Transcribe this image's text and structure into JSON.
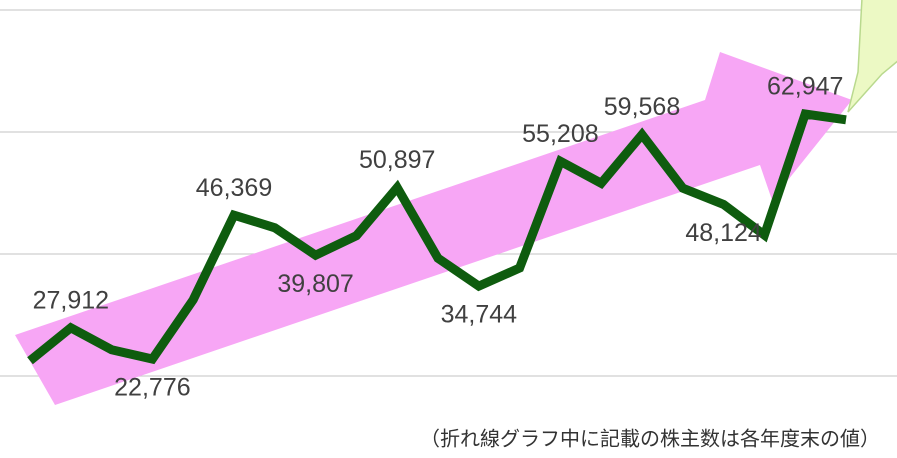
{
  "chart_data": {
    "type": "line",
    "note": "（折れ線グラフ中に記載の株主数は各年度末の値）",
    "categories": [
      null,
      null,
      null,
      null,
      null,
      null,
      null,
      null,
      null,
      null,
      null,
      null,
      null,
      null,
      null,
      null,
      null,
      null,
      null,
      null,
      null
    ],
    "series": [
      {
        "color": "#0e5c0e",
        "values": [
          22500,
          27912,
          24300,
          22776,
          32500,
          46369,
          44300,
          39807,
          43000,
          50897,
          39300,
          34744,
          37700,
          55208,
          51600,
          59568,
          50800,
          48124,
          43100,
          62947,
          62000
        ],
        "value_labels": [
          null,
          "27,912",
          null,
          "22,776",
          null,
          "46,369",
          null,
          "39,807",
          null,
          "50,897",
          null,
          "34,744",
          null,
          "55,208",
          null,
          "59,568",
          null,
          "48,124",
          null,
          "62,947",
          null
        ]
      }
    ],
    "ylim": [
      20000,
      80000
    ],
    "yticks": [
      20000,
      40000,
      60000,
      80000
    ],
    "grid": true
  }
}
